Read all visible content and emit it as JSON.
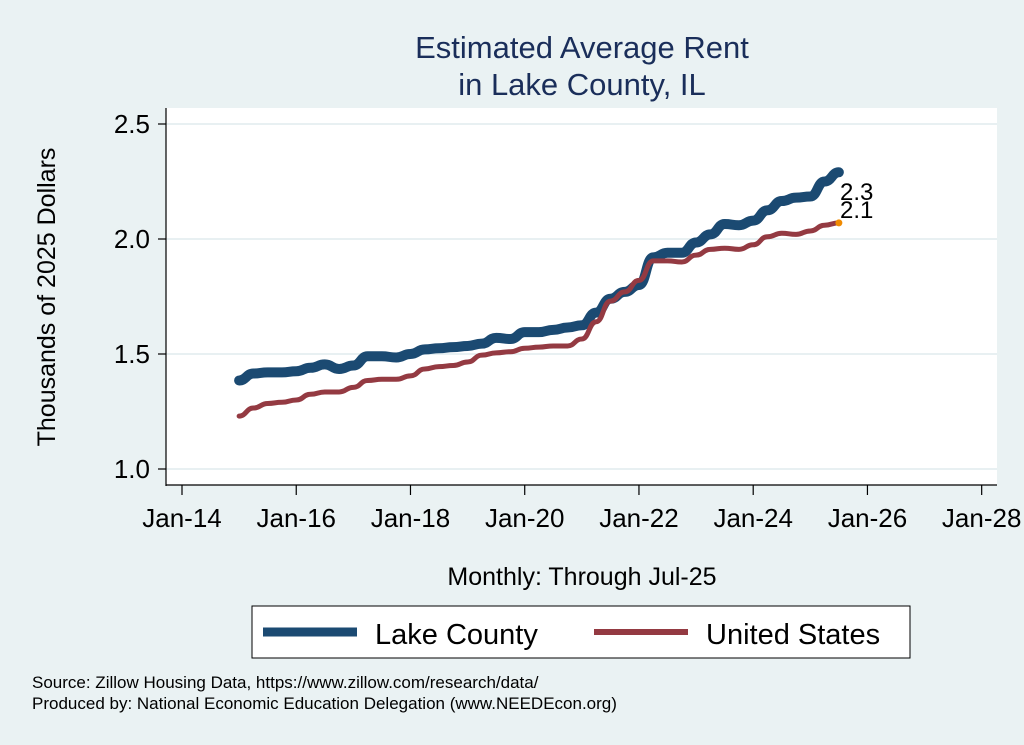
{
  "chart_data": {
    "type": "line",
    "title": [
      "Estimated Average Rent",
      "in Lake County, IL"
    ],
    "xlabel": "Monthly: Through Jul-25",
    "ylabel": "Thousands of 2025 Dollars",
    "xlim": [
      2013.75,
      2028.3
    ],
    "ylim": [
      0.93,
      2.57
    ],
    "x_ticks": [
      {
        "value": 2014,
        "label": "Jan-14"
      },
      {
        "value": 2016,
        "label": "Jan-16"
      },
      {
        "value": 2018,
        "label": "Jan-18"
      },
      {
        "value": 2020,
        "label": "Jan-20"
      },
      {
        "value": 2022,
        "label": "Jan-22"
      },
      {
        "value": 2024,
        "label": "Jan-24"
      },
      {
        "value": 2026,
        "label": "Jan-26"
      },
      {
        "value": 2028,
        "label": "Jan-28"
      }
    ],
    "y_ticks": [
      {
        "value": 1.0,
        "label": "1.0"
      },
      {
        "value": 1.5,
        "label": "1.5"
      },
      {
        "value": 2.0,
        "label": "2.0"
      },
      {
        "value": 2.5,
        "label": "2.5"
      }
    ],
    "grid": "horizontal",
    "legend_position": "bottom",
    "series": [
      {
        "name": "Lake County",
        "color": "#1b4a72",
        "end_label": "2.3",
        "x": [
          2015.0,
          2015.25,
          2015.5,
          2015.75,
          2016.0,
          2016.25,
          2016.5,
          2016.75,
          2017.0,
          2017.25,
          2017.5,
          2017.75,
          2018.0,
          2018.25,
          2018.5,
          2018.75,
          2019.0,
          2019.25,
          2019.5,
          2019.75,
          2020.0,
          2020.25,
          2020.5,
          2020.75,
          2021.0,
          2021.25,
          2021.5,
          2021.75,
          2022.0,
          2022.25,
          2022.5,
          2022.75,
          2023.0,
          2023.25,
          2023.5,
          2023.75,
          2024.0,
          2024.25,
          2024.5,
          2024.75,
          2025.0,
          2025.25,
          2025.5
        ],
        "values": [
          1.385,
          1.415,
          1.42,
          1.42,
          1.425,
          1.44,
          1.455,
          1.435,
          1.45,
          1.49,
          1.49,
          1.485,
          1.5,
          1.52,
          1.525,
          1.53,
          1.535,
          1.545,
          1.57,
          1.565,
          1.595,
          1.595,
          1.605,
          1.615,
          1.625,
          1.68,
          1.74,
          1.77,
          1.8,
          1.92,
          1.94,
          1.94,
          1.985,
          2.02,
          2.065,
          2.06,
          2.08,
          2.125,
          2.165,
          2.18,
          2.185,
          2.25,
          2.29
        ]
      },
      {
        "name": "United States",
        "color": "#943a42",
        "end_label": "2.1",
        "end_marker_color": "#f08a00",
        "x": [
          2015.0,
          2015.25,
          2015.5,
          2015.75,
          2016.0,
          2016.25,
          2016.5,
          2016.75,
          2017.0,
          2017.25,
          2017.5,
          2017.75,
          2018.0,
          2018.25,
          2018.5,
          2018.75,
          2019.0,
          2019.25,
          2019.5,
          2019.75,
          2020.0,
          2020.25,
          2020.5,
          2020.75,
          2021.0,
          2021.25,
          2021.5,
          2021.75,
          2022.0,
          2022.25,
          2022.5,
          2022.75,
          2023.0,
          2023.25,
          2023.5,
          2023.75,
          2024.0,
          2024.25,
          2024.5,
          2024.75,
          2025.0,
          2025.25,
          2025.5
        ],
        "values": [
          1.23,
          1.265,
          1.285,
          1.29,
          1.3,
          1.325,
          1.335,
          1.335,
          1.355,
          1.385,
          1.39,
          1.39,
          1.405,
          1.435,
          1.445,
          1.45,
          1.465,
          1.495,
          1.505,
          1.51,
          1.525,
          1.53,
          1.535,
          1.535,
          1.565,
          1.64,
          1.73,
          1.77,
          1.82,
          1.905,
          1.905,
          1.9,
          1.93,
          1.955,
          1.96,
          1.955,
          1.975,
          2.01,
          2.025,
          2.02,
          2.035,
          2.06,
          2.07
        ]
      }
    ],
    "notes": [
      "Source: Zillow Housing Data, https://www.zillow.com/research/data/",
      "Produced by: National Economic Education Delegation (www.NEEDEcon.org)"
    ]
  }
}
